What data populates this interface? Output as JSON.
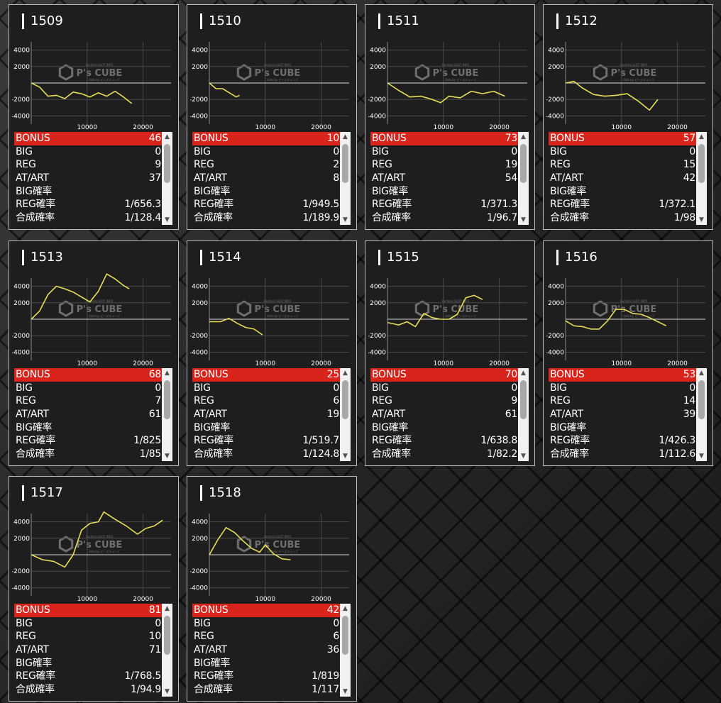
{
  "labels": {
    "bonus": "BONUS",
    "big": "BIG",
    "reg": "REG",
    "at_art": "AT/ART",
    "big_rate": "BIG確率",
    "reg_rate": "REG確率",
    "total_rate": "合成確率"
  },
  "watermark": {
    "brand": "P's CUBE",
    "small_top": "Pachislo SLOT INFO",
    "small_bottom": "data by ピーズキューブ"
  },
  "colors": {
    "bonus_bar": "#d9241c",
    "line": "#e8de58",
    "panel": "#1e1e1e"
  },
  "machines": [
    {
      "id": "1509",
      "stats": {
        "bonus": "46",
        "big": "0",
        "reg": "9",
        "at_art": "37",
        "big_rate": "",
        "reg_rate": "1/656.3",
        "total_rate": "1/128.4"
      },
      "chart_data": {
        "type": "line",
        "y_ticks": [
          "4000",
          "2000",
          "-2000",
          "-4000"
        ],
        "x_ticks": [
          "10000",
          "20000"
        ],
        "xlim": [
          0,
          25000
        ],
        "ylim": [
          -5000,
          5000
        ],
        "x": [
          0,
          1500,
          3000,
          4500,
          6000,
          7500,
          9000,
          10500,
          12000,
          13500,
          15000,
          16500,
          18000
        ],
        "y": [
          0,
          -500,
          -1600,
          -1500,
          -1900,
          -1100,
          -1300,
          -1700,
          -1200,
          -1600,
          -1000,
          -1700,
          -2500
        ]
      }
    },
    {
      "id": "1510",
      "stats": {
        "bonus": "10",
        "big": "0",
        "reg": "2",
        "at_art": "8",
        "big_rate": "",
        "reg_rate": "1/949.5",
        "total_rate": "1/189.9"
      },
      "chart_data": {
        "type": "line",
        "y_ticks": [
          "4000",
          "2000",
          "-2000",
          "-4000"
        ],
        "x_ticks": [
          "10000",
          "20000"
        ],
        "xlim": [
          0,
          25000
        ],
        "ylim": [
          -5000,
          5000
        ],
        "x": [
          0,
          1200,
          2400,
          3600,
          4800,
          5400
        ],
        "y": [
          0,
          -700,
          -700,
          -1200,
          -1700,
          -1500
        ]
      }
    },
    {
      "id": "1511",
      "stats": {
        "bonus": "73",
        "big": "0",
        "reg": "19",
        "at_art": "54",
        "big_rate": "",
        "reg_rate": "1/371.3",
        "total_rate": "1/96.7"
      },
      "chart_data": {
        "type": "line",
        "y_ticks": [
          "4000",
          "2000",
          "-2000",
          "-4000"
        ],
        "x_ticks": [
          "10000",
          "20000"
        ],
        "xlim": [
          0,
          25000
        ],
        "ylim": [
          -5000,
          5000
        ],
        "x": [
          0,
          2000,
          4000,
          6000,
          8000,
          9500,
          11000,
          13000,
          15000,
          17000,
          19000,
          21000
        ],
        "y": [
          0,
          -900,
          -1700,
          -1600,
          -2000,
          -2400,
          -1600,
          -1800,
          -1000,
          -1300,
          -1000,
          -1600
        ]
      }
    },
    {
      "id": "1512",
      "stats": {
        "bonus": "57",
        "big": "0",
        "reg": "15",
        "at_art": "42",
        "big_rate": "",
        "reg_rate": "1/372.1",
        "total_rate": "1/98"
      },
      "chart_data": {
        "type": "line",
        "y_ticks": [
          "4000",
          "2000",
          "-2000",
          "-4000"
        ],
        "x_ticks": [
          "10000",
          "20000"
        ],
        "xlim": [
          0,
          25000
        ],
        "ylim": [
          -5000,
          5000
        ],
        "x": [
          0,
          1500,
          3000,
          5000,
          7000,
          9000,
          11000,
          13000,
          15000,
          16500
        ],
        "y": [
          0,
          200,
          -600,
          -1400,
          -1600,
          -1500,
          -1300,
          -2200,
          -3300,
          -2000
        ]
      }
    },
    {
      "id": "1513",
      "stats": {
        "bonus": "68",
        "big": "0",
        "reg": "7",
        "at_art": "61",
        "big_rate": "",
        "reg_rate": "1/825",
        "total_rate": "1/85"
      },
      "chart_data": {
        "type": "line",
        "y_ticks": [
          "4000",
          "2000",
          "-2000",
          "-4000"
        ],
        "x_ticks": [
          "10000",
          "20000"
        ],
        "xlim": [
          0,
          25000
        ],
        "ylim": [
          -5000,
          5000
        ],
        "x": [
          0,
          1500,
          3000,
          4500,
          6000,
          7500,
          9000,
          10500,
          12000,
          13500,
          15000,
          16500,
          17500
        ],
        "y": [
          0,
          1000,
          3000,
          4000,
          3700,
          3300,
          2700,
          2100,
          3400,
          5500,
          4900,
          4100,
          3700
        ]
      }
    },
    {
      "id": "1514",
      "stats": {
        "bonus": "25",
        "big": "0",
        "reg": "6",
        "at_art": "19",
        "big_rate": "",
        "reg_rate": "1/519.7",
        "total_rate": "1/124.8"
      },
      "chart_data": {
        "type": "line",
        "y_ticks": [
          "4000",
          "2000",
          "-2000",
          "-4000"
        ],
        "x_ticks": [
          "10000",
          "20000"
        ],
        "xlim": [
          0,
          25000
        ],
        "ylim": [
          -5000,
          5000
        ],
        "x": [
          0,
          2000,
          3500,
          5000,
          6500,
          8000,
          9500
        ],
        "y": [
          -300,
          -300,
          100,
          -500,
          -1000,
          -1200,
          -1900
        ]
      }
    },
    {
      "id": "1515",
      "stats": {
        "bonus": "70",
        "big": "0",
        "reg": "9",
        "at_art": "61",
        "big_rate": "",
        "reg_rate": "1/638.8",
        "total_rate": "1/82.2"
      },
      "chart_data": {
        "type": "line",
        "y_ticks": [
          "4000",
          "2000",
          "-2000",
          "-4000"
        ],
        "x_ticks": [
          "10000",
          "20000"
        ],
        "xlim": [
          0,
          25000
        ],
        "ylim": [
          -5000,
          5000
        ],
        "x": [
          0,
          2000,
          3500,
          5000,
          6500,
          8000,
          9500,
          11000,
          12500,
          14000,
          15500,
          17000
        ],
        "y": [
          -400,
          -700,
          -300,
          -900,
          700,
          200,
          0,
          0,
          600,
          2600,
          2900,
          2400
        ]
      }
    },
    {
      "id": "1516",
      "stats": {
        "bonus": "53",
        "big": "0",
        "reg": "14",
        "at_art": "39",
        "big_rate": "",
        "reg_rate": "1/426.3",
        "total_rate": "1/112.6"
      },
      "chart_data": {
        "type": "line",
        "y_ticks": [
          "4000",
          "2000",
          "-2000",
          "-4000"
        ],
        "x_ticks": [
          "10000",
          "20000"
        ],
        "xlim": [
          0,
          25000
        ],
        "ylim": [
          -5000,
          5000
        ],
        "x": [
          0,
          1500,
          3000,
          4500,
          6000,
          7500,
          9000,
          10500,
          12000,
          13500,
          15000,
          16500,
          18000
        ],
        "y": [
          -200,
          -800,
          -900,
          -1200,
          -1200,
          -200,
          1200,
          1200,
          700,
          600,
          200,
          -300,
          -800
        ]
      }
    },
    {
      "id": "1517",
      "stats": {
        "bonus": "81",
        "big": "0",
        "reg": "10",
        "at_art": "71",
        "big_rate": "",
        "reg_rate": "1/768.5",
        "total_rate": "1/94.9"
      },
      "chart_data": {
        "type": "line",
        "y_ticks": [
          "4000",
          "2000",
          "-2000",
          "-4000"
        ],
        "x_ticks": [
          "10000",
          "20000"
        ],
        "xlim": [
          0,
          25000
        ],
        "ylim": [
          -5000,
          5000
        ],
        "x": [
          0,
          2000,
          4000,
          6000,
          7500,
          9000,
          10500,
          12000,
          13000,
          15000,
          17000,
          19000,
          20500,
          22000,
          23500
        ],
        "y": [
          0,
          -600,
          -800,
          -1500,
          0,
          3000,
          3800,
          4000,
          5200,
          4300,
          3500,
          2500,
          3200,
          3500,
          4200
        ]
      }
    },
    {
      "id": "1518",
      "stats": {
        "bonus": "42",
        "big": "0",
        "reg": "6",
        "at_art": "36",
        "big_rate": "",
        "reg_rate": "1/819",
        "total_rate": "1/117"
      },
      "chart_data": {
        "type": "line",
        "y_ticks": [
          "4000",
          "2000",
          "-2000",
          "-4000"
        ],
        "x_ticks": [
          "10000",
          "20000"
        ],
        "xlim": [
          0,
          25000
        ],
        "ylim": [
          -5000,
          5000
        ],
        "x": [
          0,
          1500,
          3000,
          4500,
          6000,
          7500,
          9000,
          10000,
          11500,
          13000,
          14500
        ],
        "y": [
          0,
          1800,
          3300,
          2700,
          1700,
          800,
          300,
          1200,
          100,
          -500,
          -600
        ]
      }
    }
  ]
}
